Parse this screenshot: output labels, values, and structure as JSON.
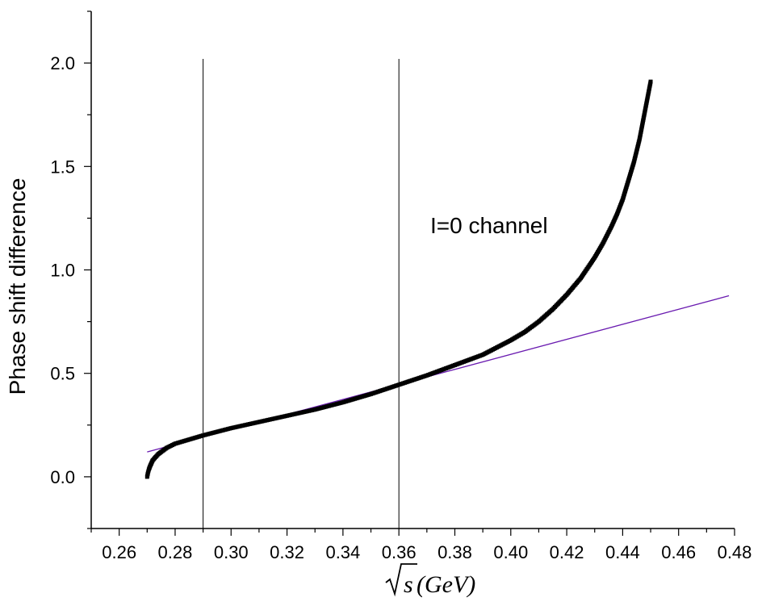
{
  "chart_data": {
    "type": "scatter",
    "title": "",
    "xlabel_parts": {
      "radicand": "s",
      "unit": "(GeV)"
    },
    "ylabel": "Phase shift difference",
    "xlim": [
      0.25,
      0.48
    ],
    "ylim": [
      -0.25,
      2.25
    ],
    "x_ticks": [
      "0.26",
      "0.28",
      "0.30",
      "0.32",
      "0.34",
      "0.36",
      "0.38",
      "0.40",
      "0.42",
      "0.44",
      "0.46",
      "0.48"
    ],
    "x_tick_values": [
      0.26,
      0.28,
      0.3,
      0.32,
      0.34,
      0.36,
      0.38,
      0.4,
      0.42,
      0.44,
      0.46,
      0.48
    ],
    "y_ticks": [
      "0.0",
      "0.5",
      "1.0",
      "1.5",
      "2.0"
    ],
    "y_tick_values": [
      0.0,
      0.5,
      1.0,
      1.5,
      2.0
    ],
    "annotation": "I=0 channel",
    "vertical_lines_x": [
      0.29,
      0.36
    ],
    "series": [
      {
        "style": "square-markers",
        "color": "#000000",
        "x": [
          0.27,
          0.2703,
          0.2706,
          0.271,
          0.2715,
          0.272,
          0.273,
          0.274,
          0.275,
          0.277,
          0.28,
          0.285,
          0.29,
          0.3,
          0.31,
          0.32,
          0.33,
          0.34,
          0.35,
          0.36,
          0.37,
          0.38,
          0.39,
          0.4,
          0.405,
          0.41,
          0.415,
          0.42,
          0.425,
          0.43,
          0.433,
          0.436,
          0.438,
          0.44,
          0.442,
          0.444,
          0.446,
          0.448,
          0.45
        ],
        "y": [
          0.0,
          0.02,
          0.035,
          0.05,
          0.065,
          0.08,
          0.095,
          0.11,
          0.12,
          0.14,
          0.16,
          0.18,
          0.2,
          0.235,
          0.265,
          0.295,
          0.325,
          0.36,
          0.4,
          0.445,
          0.49,
          0.54,
          0.59,
          0.66,
          0.7,
          0.75,
          0.81,
          0.88,
          0.96,
          1.06,
          1.13,
          1.21,
          1.27,
          1.34,
          1.43,
          1.52,
          1.63,
          1.77,
          1.91
        ]
      },
      {
        "style": "line",
        "color": "#6a1bb0",
        "x": [
          0.27,
          0.478
        ],
        "y": [
          0.12,
          0.875
        ]
      }
    ]
  }
}
